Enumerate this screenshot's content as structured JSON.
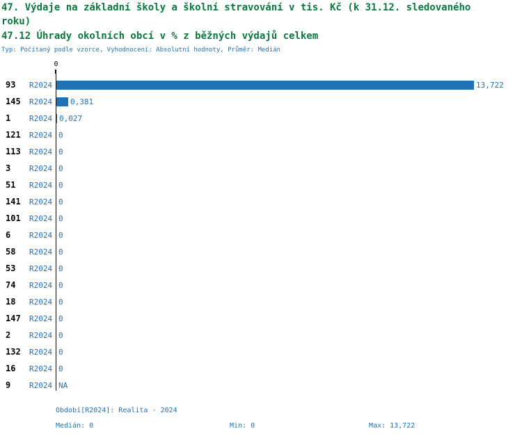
{
  "header": {
    "title_line1": "47. Výdaje na základní školy a školní stravování v tis. Kč (k 31.12. sledovaného",
    "title_line2": "roku)",
    "subtitle": "47.12 Úhrady okolních obcí v % z běžných výdajů celkem",
    "meta": "Typ: Počítaný podle vzorce, Vyhodnocení: Absolutní hodnoty, Průměr: Medián"
  },
  "chart_data": {
    "type": "bar",
    "orientation": "horizontal",
    "title": "47. Výdaje na základní školy a školní stravování v tis. Kč (k 31.12. sledovaného roku)",
    "subtitle": "47.12 Úhrady okolních obcí v % z běžných výdajů celkem",
    "xlabel": "",
    "ylabel": "",
    "xlim": [
      0,
      13.722
    ],
    "axis_ticks": [
      "0"
    ],
    "grid": false,
    "legend": null,
    "series_name": "R2024",
    "categories": [
      "93",
      "145",
      "1",
      "121",
      "113",
      "3",
      "51",
      "141",
      "101",
      "6",
      "58",
      "53",
      "74",
      "18",
      "147",
      "2",
      "132",
      "16",
      "9"
    ],
    "values": [
      13.722,
      0.381,
      0.027,
      0,
      0,
      0,
      0,
      0,
      0,
      0,
      0,
      0,
      0,
      0,
      0,
      0,
      0,
      0,
      null
    ],
    "value_labels": [
      "13,722",
      "0,381",
      "0,027",
      "0",
      "0",
      "0",
      "0",
      "0",
      "0",
      "0",
      "0",
      "0",
      "0",
      "0",
      "0",
      "0",
      "0",
      "0",
      "NA"
    ]
  },
  "footer": {
    "period_line": "Období[R2024]: Realita - 2024",
    "median": "Medián: 0",
    "min": "Min: 0",
    "max": "Max: 13,722"
  },
  "colors": {
    "title_green": "#0a7a3c",
    "accent_blue": "#2171b5",
    "bar_blue": "#2171b5",
    "axis_black": "#000000"
  }
}
